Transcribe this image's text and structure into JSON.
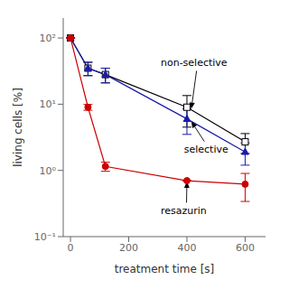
{
  "chart_data": {
    "type": "line",
    "x": [
      0,
      60,
      120,
      400,
      600
    ],
    "series": [
      {
        "color": "black",
        "marker": "open_square",
        "values": [
          100,
          35,
          28,
          9.0,
          2.7
        ],
        "yerr_lo": [
          0,
          8,
          7,
          4.5,
          0.9
        ],
        "yerr_hi": [
          0,
          8,
          7,
          4.5,
          0.9
        ]
      },
      {
        "color": "#1a1aaa",
        "marker": "triangle",
        "values": [
          100,
          35,
          28,
          6.0,
          1.9
        ],
        "yerr_lo": [
          0,
          8,
          7,
          2.5,
          0.7
        ],
        "yerr_hi": [
          0,
          8,
          7,
          2.5,
          0.7
        ]
      },
      {
        "color": "#cc0000",
        "marker": "circle",
        "values": [
          100,
          9.0,
          1.15,
          0.7,
          0.62
        ],
        "yerr_lo": [
          0,
          0.9,
          0.18,
          0.0,
          0.28
        ],
        "yerr_hi": [
          0,
          0.9,
          0.18,
          0.0,
          0.28
        ]
      }
    ],
    "xlabel": "treatment time [s]",
    "ylabel": "living cells [%]",
    "xlim": [
      -25,
      670
    ],
    "ylim": [
      0.1,
      200
    ],
    "xticks": [
      0,
      200,
      400,
      600
    ],
    "yticks": [
      {
        "value": 0.1,
        "label": "10⁻¹"
      },
      {
        "value": 1,
        "label": "10⁰"
      },
      {
        "value": 10,
        "label": "10¹"
      },
      {
        "value": 100,
        "label": "10²"
      }
    ],
    "log": "y",
    "grid": false,
    "annotations": [
      {
        "text": "non-selective",
        "x": 415,
        "y": 8.5,
        "text_x": 310,
        "text_y": 38
      },
      {
        "text": "selective",
        "x": 415,
        "y": 5.5,
        "text_x": 390,
        "text_y": 1.85
      },
      {
        "text": "resazurin",
        "x": 400,
        "y": 0.68,
        "text_x": 310,
        "text_y": 0.22
      }
    ]
  }
}
